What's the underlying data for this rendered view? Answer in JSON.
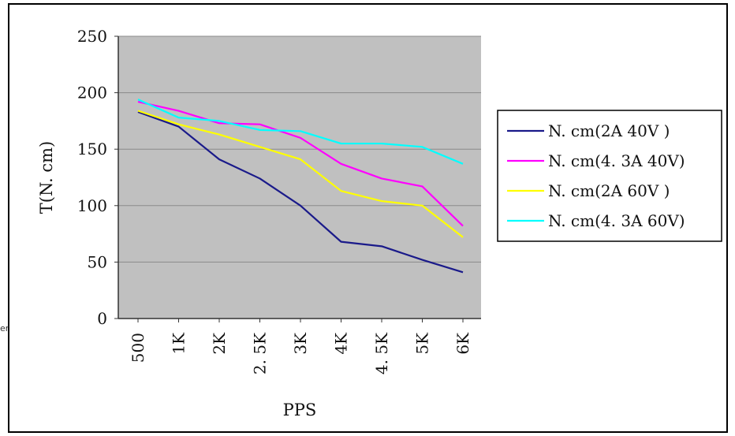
{
  "stray_text": "er",
  "chart_data": {
    "type": "line",
    "title": "",
    "xlabel": "PPS",
    "ylabel": "T(N. cm)",
    "categories": [
      "500",
      "1K",
      "2K",
      "2. 5K",
      "3K",
      "4K",
      "4. 5K",
      "5K",
      "6K"
    ],
    "ylim": [
      0,
      250
    ],
    "yticks": [
      "0",
      "50",
      "100",
      "150",
      "200",
      "250"
    ],
    "grid": true,
    "legend_position": "right",
    "series": [
      {
        "name": "N. cm(2A 40V )",
        "color": "#1a1a8a",
        "values": [
          183,
          170,
          141,
          124,
          100,
          68,
          64,
          52,
          41
        ]
      },
      {
        "name": "N. cm(4. 3A 40V)",
        "color": "#ff00ff",
        "values": [
          192,
          184,
          173,
          172,
          160,
          137,
          124,
          117,
          82
        ]
      },
      {
        "name": "N. cm(2A 60V )",
        "color": "#ffff00",
        "values": [
          184,
          172,
          163,
          152,
          141,
          113,
          104,
          100,
          72
        ]
      },
      {
        "name": "N. cm(4. 3A 60V)",
        "color": "#00ffff",
        "values": [
          194,
          178,
          175,
          167,
          166,
          155,
          155,
          152,
          137
        ]
      }
    ]
  }
}
